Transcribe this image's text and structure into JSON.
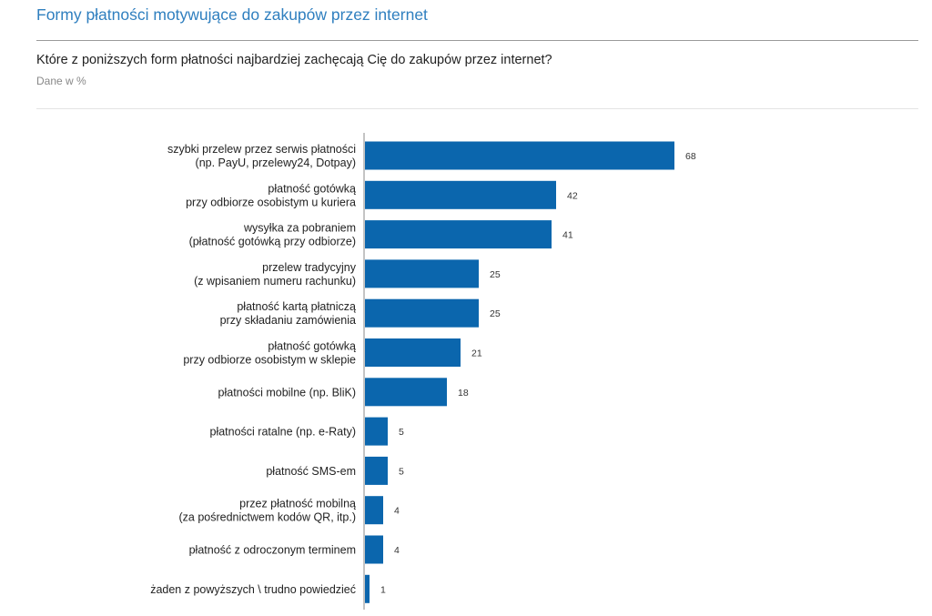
{
  "header": {
    "title": "Formy płatności motywujące do zakupów przez internet",
    "question": "Które z poniższych form płatności najbardziej zachęcają Cię do zakupów przez internet?",
    "subtitle": "Dane w %"
  },
  "colors": {
    "bar": "#0b66ad",
    "title": "#2f7fbf",
    "axis": "#888888"
  },
  "chart_data": {
    "type": "bar",
    "orientation": "horizontal",
    "categories": [
      [
        "szybki przelew przez serwis płatności",
        "(np. PayU, przelewy24, Dotpay)"
      ],
      [
        "płatność gotówką",
        "przy odbiorze osobistym u kuriera"
      ],
      [
        "wysyłka za pobraniem",
        "(płatność gotówką przy odbiorze)"
      ],
      [
        "przelew tradycyjny",
        "(z wpisaniem numeru rachunku)"
      ],
      [
        "płatność kartą płatniczą",
        "przy składaniu zamówienia"
      ],
      [
        "płatność gotówką",
        "przy odbiorze osobistym w sklepie"
      ],
      [
        "płatności mobilne (np. BliK)"
      ],
      [
        "płatności ratalne (np. e-Raty)"
      ],
      [
        "płatność SMS-em"
      ],
      [
        "przez płatność mobilną",
        "(za pośrednictwem kodów QR, itp.)"
      ],
      [
        "płatność z odroczonym terminem"
      ],
      [
        "żaden z powyższych \\ trudno powiedzieć"
      ]
    ],
    "values": [
      68,
      42,
      41,
      25,
      25,
      21,
      18,
      5,
      5,
      4,
      4,
      1
    ],
    "title": "Formy płatności motywujące do zakupów przez internet",
    "xlabel": "",
    "ylabel": "",
    "xlim": [
      0,
      100
    ],
    "grid": false,
    "legend": "none"
  }
}
